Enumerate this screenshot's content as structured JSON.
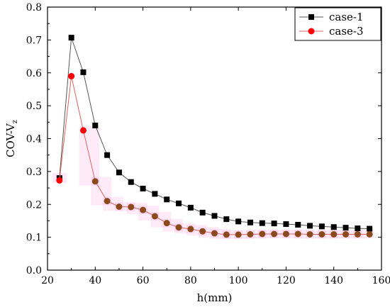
{
  "chart_data": {
    "type": "line",
    "xlabel": "h(mm)",
    "ylabel_main": "COV-V",
    "ylabel_sub": "z",
    "xlim": [
      20,
      160
    ],
    "ylim": [
      0.0,
      0.8
    ],
    "xticks": [
      20,
      40,
      60,
      80,
      100,
      120,
      140,
      160
    ],
    "xtick_labels": [
      "20",
      "40",
      "60",
      "80",
      "100",
      "120",
      "140",
      "160"
    ],
    "yticks": [
      0.0,
      0.1,
      0.2,
      0.3,
      0.4,
      0.5,
      0.6,
      0.7,
      0.8
    ],
    "ytick_labels": [
      "0.0",
      "0.1",
      "0.2",
      "0.3",
      "0.4",
      "0.5",
      "0.6",
      "0.7",
      "0.8"
    ],
    "grid": false,
    "legend_position": "top-right",
    "x": [
      25,
      30,
      35,
      40,
      45,
      50,
      55,
      60,
      65,
      70,
      75,
      80,
      85,
      90,
      95,
      100,
      105,
      110,
      115,
      120,
      125,
      130,
      135,
      140,
      145,
      150,
      155
    ],
    "series": [
      {
        "name": "case-1",
        "marker": "square",
        "color": "#000000",
        "line_color": "#555555",
        "values": [
          0.28,
          0.707,
          0.602,
          0.44,
          0.35,
          0.297,
          0.268,
          0.248,
          0.232,
          0.215,
          0.203,
          0.19,
          0.175,
          0.165,
          0.155,
          0.148,
          0.145,
          0.143,
          0.142,
          0.14,
          0.138,
          0.135,
          0.133,
          0.131,
          0.129,
          0.127,
          0.126
        ]
      },
      {
        "name": "case-3",
        "marker": "circle",
        "color": "#ff0000",
        "line_color": "#e06060",
        "values": [
          0.273,
          0.59,
          0.425,
          0.27,
          0.21,
          0.193,
          0.192,
          0.183,
          0.164,
          0.143,
          0.13,
          0.125,
          0.118,
          0.112,
          0.108,
          0.108,
          0.109,
          0.11,
          0.11,
          0.11,
          0.11,
          0.109,
          0.109,
          0.109,
          0.109,
          0.109,
          0.109
        ]
      }
    ]
  }
}
